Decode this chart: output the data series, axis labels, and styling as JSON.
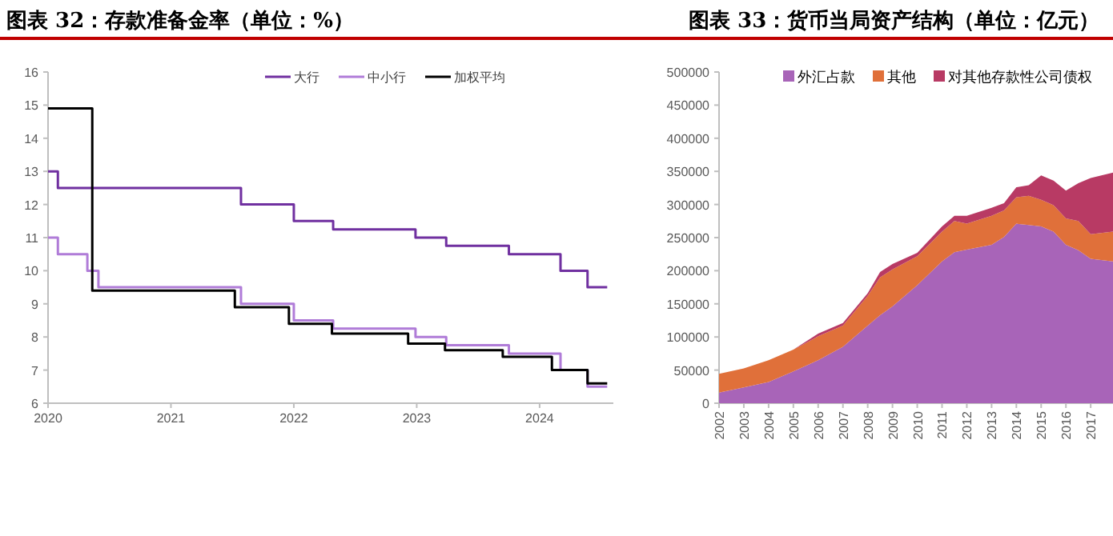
{
  "chart_data": [
    {
      "type": "step",
      "title": "图表 32：存款准备金率（单位：%）",
      "xlim": [
        2020,
        2024.6
      ],
      "xticks": [
        2020,
        2021,
        2022,
        2023,
        2024
      ],
      "ylim": [
        6,
        16
      ],
      "yticks": [
        6,
        7,
        8,
        9,
        10,
        11,
        12,
        13,
        14,
        15,
        16
      ],
      "legend": "top",
      "series": [
        {
          "name": "大行",
          "color": "#7030a0",
          "x": [
            2020.0,
            2020.08,
            2021.57,
            2022.0,
            2022.32,
            2022.99,
            2023.24,
            2023.75,
            2024.17,
            2024.39,
            2024.55
          ],
          "values": [
            13,
            12.5,
            12,
            11.5,
            11.25,
            11,
            10.75,
            10.5,
            10,
            9.5,
            9.5
          ]
        },
        {
          "name": "中小行",
          "color": "#b07cd8",
          "x": [
            2020.0,
            2020.08,
            2020.32,
            2020.41,
            2021.57,
            2022.0,
            2022.32,
            2022.99,
            2023.24,
            2023.75,
            2024.17,
            2024.39,
            2024.55
          ],
          "values": [
            11,
            10.5,
            10,
            9.5,
            9,
            8.5,
            8.25,
            8,
            7.75,
            7.5,
            7,
            6.5,
            6.5
          ]
        },
        {
          "name": "加权平均",
          "color": "#000000",
          "x": [
            2020.0,
            2020.36,
            2021.52,
            2021.96,
            2022.31,
            2022.93,
            2023.23,
            2023.7,
            2024.1,
            2024.39,
            2024.55
          ],
          "values": [
            14.9,
            9.4,
            8.9,
            8.4,
            8.1,
            7.8,
            7.6,
            7.4,
            7.0,
            6.6,
            6.6
          ]
        }
      ]
    },
    {
      "type": "area",
      "stacked": true,
      "title": "图表 33：货币当局资产结构（单位：亿元）",
      "xlim": [
        2002,
        2017.9
      ],
      "xticks": [
        2002,
        2003,
        2004,
        2005,
        2006,
        2007,
        2008,
        2009,
        2010,
        2011,
        2012,
        2013,
        2014,
        2015,
        2016,
        2017
      ],
      "ylim": [
        0,
        500000
      ],
      "yticks": [
        0,
        50000,
        100000,
        150000,
        200000,
        250000,
        300000,
        350000,
        400000,
        450000,
        500000
      ],
      "legend": "top right",
      "x": [
        2002,
        2003,
        2004,
        2005,
        2006,
        2007,
        2008,
        2008.5,
        2009,
        2010,
        2011,
        2011.5,
        2012,
        2013,
        2013.5,
        2014,
        2014.5,
        2015,
        2015.5,
        2016,
        2016.5,
        2017,
        2017.9
      ],
      "series": [
        {
          "name": "外汇占款",
          "color": "#a864b8",
          "values": [
            16000,
            24000,
            32000,
            48000,
            65000,
            85000,
            117000,
            133000,
            146000,
            178000,
            214000,
            228000,
            232000,
            239000,
            251000,
            271000,
            269000,
            267000,
            259000,
            239000,
            231000,
            218000,
            214000
          ]
        },
        {
          "name": "其他",
          "color": "#e0703a",
          "values": [
            28500,
            28600,
            33000,
            33000,
            36000,
            32000,
            45000,
            57000,
            56000,
            44000,
            45000,
            47000,
            39000,
            44000,
            40000,
            40000,
            44000,
            40000,
            40000,
            40000,
            44000,
            37000,
            45000
          ]
        },
        {
          "name": "对其他存款性公司债权",
          "color": "#b83a64",
          "values": [
            0,
            0,
            0,
            0,
            4000,
            4000,
            4000,
            8000,
            8000,
            5000,
            8000,
            8000,
            12000,
            12000,
            11000,
            15000,
            16000,
            37000,
            37000,
            42000,
            57000,
            85000,
            89000
          ]
        }
      ]
    }
  ]
}
